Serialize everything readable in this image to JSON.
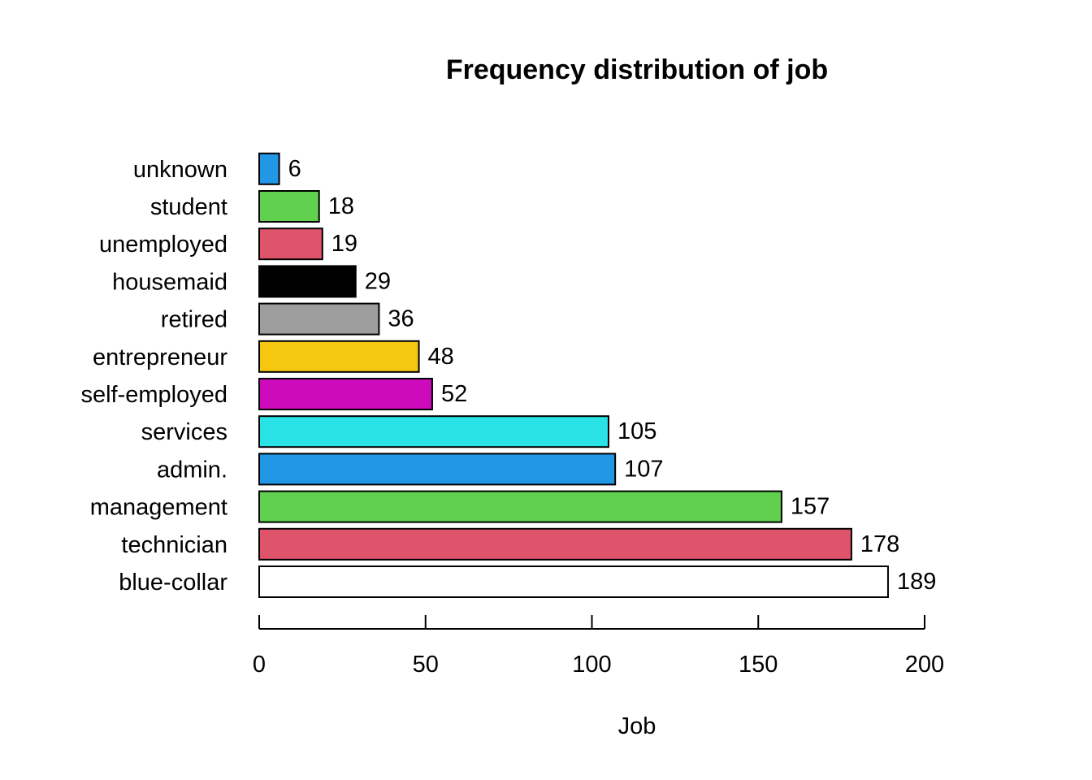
{
  "chart_data": {
    "type": "bar",
    "orientation": "horizontal",
    "title": "Frequency distribution of job",
    "xlabel": "Job",
    "ylabel": "",
    "xlim": [
      0,
      200
    ],
    "xticks": [
      0,
      50,
      100,
      150,
      200
    ],
    "grid": false,
    "categories": [
      "blue-collar",
      "technician",
      "management",
      "admin.",
      "services",
      "self-employed",
      "entrepreneur",
      "retired",
      "housemaid",
      "unemployed",
      "student",
      "unknown"
    ],
    "values": [
      189,
      178,
      157,
      107,
      105,
      52,
      48,
      36,
      29,
      19,
      18,
      6
    ],
    "colors": [
      "#FFFFFF",
      "#DF536B",
      "#61D04F",
      "#2297E6",
      "#28E2E5",
      "#CD0BBC",
      "#F5C710",
      "#9E9E9E",
      "#000000",
      "#DF536B",
      "#61D04F",
      "#2297E6"
    ]
  }
}
